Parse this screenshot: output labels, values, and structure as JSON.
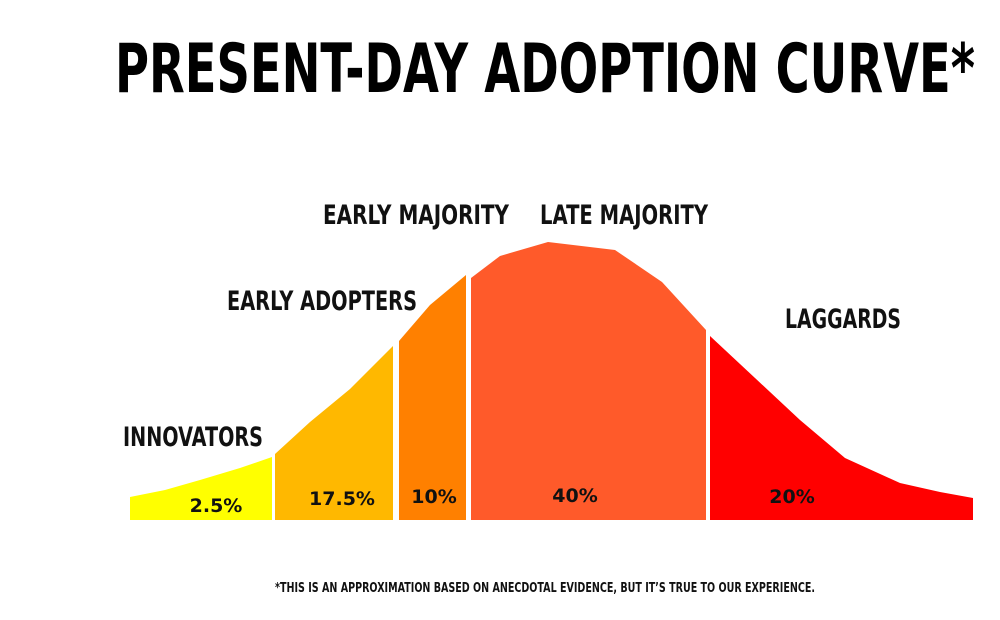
{
  "chart_data": {
    "type": "area",
    "title": "PRESENT-DAY ADOPTION CURVE*",
    "footnote": "*THIS IS AN APPROXIMATION BASED ON ANECDOTAL EVIDENCE, BUT IT’S TRUE TO OUR EXPERIENCE.",
    "segments": [
      {
        "name": "INNOVATORS",
        "value_label": "2.5%",
        "value": 2.5,
        "color": "#FFFF00"
      },
      {
        "name": "EARLY ADOPTERS",
        "value_label": "17.5%",
        "value": 17.5,
        "color": "#FFB800"
      },
      {
        "name": "EARLY MAJORITY",
        "value_label": "10%",
        "value": 10,
        "color": "#FF8000"
      },
      {
        "name": "LATE MAJORITY",
        "value_label": "40%",
        "value": 40,
        "color": "#FF5A2A"
      },
      {
        "name": "LAGGARDS",
        "value_label": "20%",
        "value": 20,
        "color": "#FF0000"
      }
    ],
    "grid": false,
    "legend": "none"
  }
}
